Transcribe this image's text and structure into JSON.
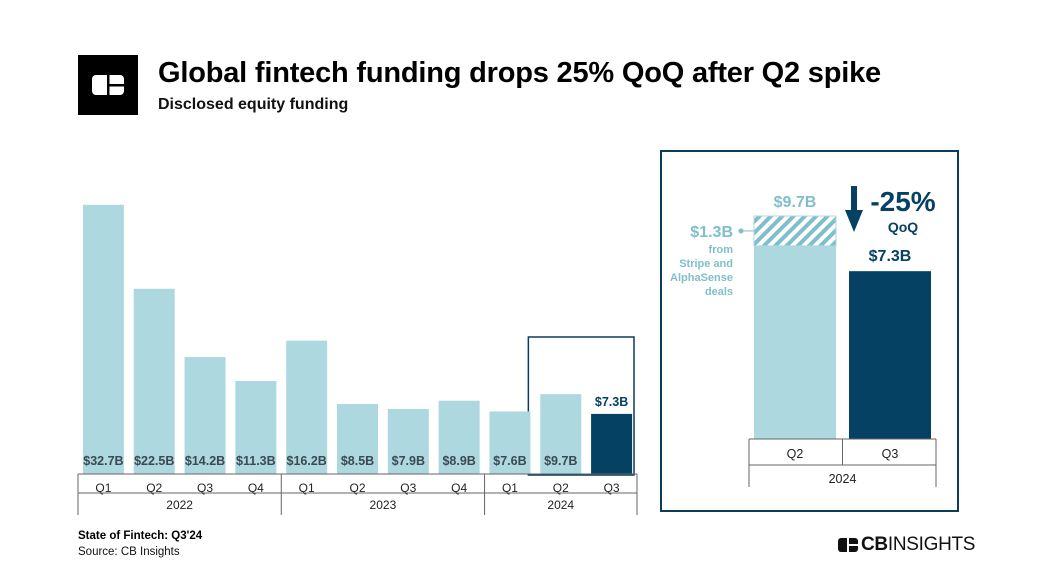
{
  "header": {
    "title": "Global fintech funding drops 25% QoQ after Q2 spike",
    "subtitle": "Disclosed equity funding"
  },
  "footer": {
    "title": "State of Fintech: Q3'24",
    "source": "Source: CB Insights",
    "brand_prefix": "CB",
    "brand_suffix": "INSIGHTS"
  },
  "icons": {
    "logo": "cb-insights-logo-icon",
    "arrow": "arrow-down-icon"
  },
  "colors": {
    "light_bar": "#add8df",
    "dark_bar": "#054163",
    "label_dark": "#3b4a52",
    "label_light_text": "#7fbfcb"
  },
  "chart_data": [
    {
      "type": "bar",
      "title": "",
      "xlabel": "",
      "ylabel": "",
      "categories": [
        "Q1",
        "Q2",
        "Q3",
        "Q4",
        "Q1",
        "Q2",
        "Q3",
        "Q4",
        "Q1",
        "Q2",
        "Q3"
      ],
      "groups": [
        {
          "label": "2022",
          "count": 4
        },
        {
          "label": "2023",
          "count": 4
        },
        {
          "label": "2024",
          "count": 3
        }
      ],
      "values": [
        32.7,
        22.5,
        14.2,
        11.3,
        16.2,
        8.5,
        7.9,
        8.9,
        7.6,
        9.7,
        7.3
      ],
      "data_labels": [
        "$32.7B",
        "$22.5B",
        "$14.2B",
        "$11.3B",
        "$16.2B",
        "$8.5B",
        "$7.9B",
        "$8.9B",
        "$7.6B",
        "$9.7B",
        "$7.3B"
      ],
      "highlight": [
        false,
        false,
        false,
        false,
        false,
        false,
        false,
        false,
        false,
        false,
        true
      ],
      "ylim": [
        0,
        34.5
      ],
      "grid": false
    },
    {
      "type": "bar",
      "title": "",
      "categories": [
        "Q2",
        "Q3"
      ],
      "group_label": "2024",
      "values": [
        9.7,
        7.3
      ],
      "data_labels": [
        "$9.7B",
        "$7.3B"
      ],
      "stacked_portion": {
        "category": "Q2",
        "value": 1.3,
        "label": "$1.3B",
        "note": [
          "from",
          "Stripe and",
          "AlphaSense",
          "deals"
        ]
      },
      "change": {
        "value": "-25%",
        "label": "QoQ"
      },
      "ylim": [
        0,
        10.0
      ]
    }
  ]
}
